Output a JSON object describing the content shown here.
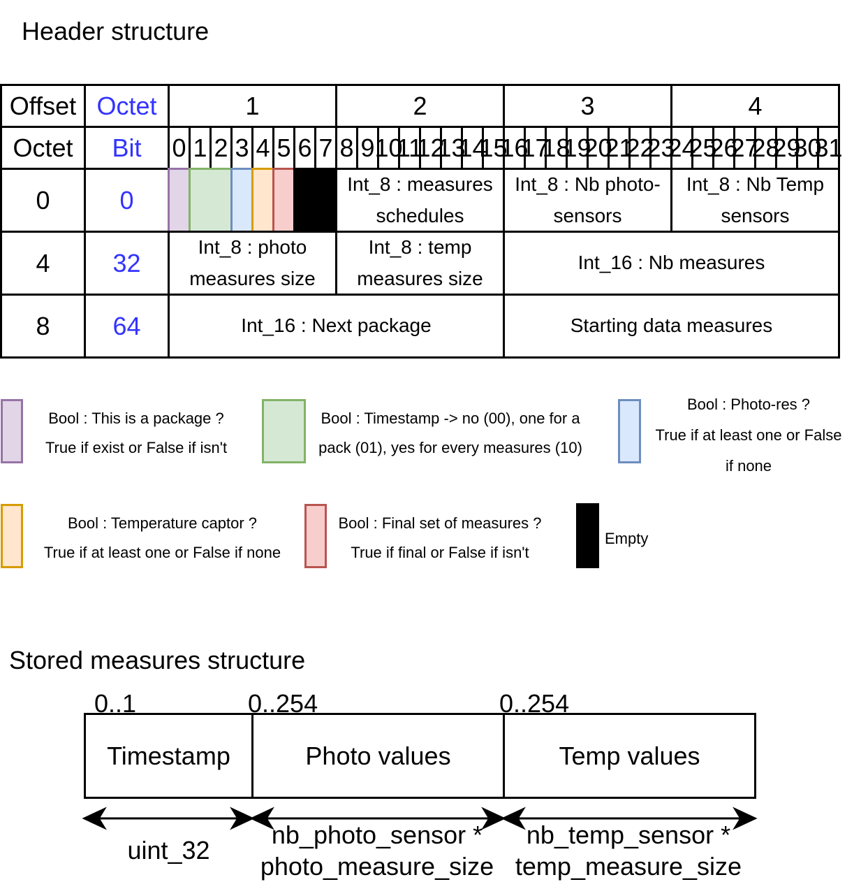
{
  "header_title": "Header structure",
  "table": {
    "corner_offset": "Offset",
    "corner_octet": "Octet",
    "row2_offset": "Octet",
    "row2_bit": "Bit",
    "octets": [
      "1",
      "2",
      "3",
      "4"
    ],
    "bits": [
      "0",
      "1",
      "2",
      "3",
      "4",
      "5",
      "6",
      "7",
      "8",
      "9",
      "10",
      "11",
      "12",
      "13",
      "14",
      "15",
      "16",
      "17",
      "18",
      "19",
      "20",
      "21",
      "22",
      "23",
      "24",
      "25",
      "26",
      "27",
      "28",
      "29",
      "30",
      "31"
    ],
    "rows": [
      {
        "octet": "0",
        "bit": "0",
        "fields": [
          "Int_8 : measures schedules",
          "Int_8 : Nb photo-sensors",
          "Int_8 : Nb Temp sensors"
        ]
      },
      {
        "octet": "4",
        "bit": "32",
        "fields": [
          "Int_8 : photo measures size",
          "Int_8 : temp measures size",
          "Int_16 : Nb measures"
        ]
      },
      {
        "octet": "8",
        "bit": "64",
        "fields": [
          "Int_16 : Next package",
          "Starting data measures"
        ]
      }
    ]
  },
  "legend": [
    {
      "label": "Bool : This is a package ?",
      "desc": "True if exist or False if isn't",
      "fill": "#e1d5e7",
      "stroke": "#9673a6"
    },
    {
      "label": "Bool : Timestamp -> no (00), one for a",
      "desc": "pack (01), yes for every measures (10)",
      "fill": "#d5e8d4",
      "stroke": "#82b366"
    },
    {
      "label": "Bool : Photo-res ?",
      "desc": "True if at least one or False",
      "desc2": "if none",
      "fill": "#dae8fc",
      "stroke": "#6c8ebf"
    },
    {
      "label": "Bool : Temperature captor ?",
      "desc": "True if at least one or False if none",
      "fill": "#ffe6cc",
      "stroke": "#d79b00"
    },
    {
      "label": "Bool : Final set of measures ?",
      "desc": "True if final or False if isn't",
      "fill": "#f8cecc",
      "stroke": "#b85450"
    },
    {
      "label": "Empty",
      "fill": "#000000",
      "stroke": "#000000"
    }
  ],
  "stored_title": "Stored measures structure",
  "stored": [
    {
      "range": "0..1",
      "name": "Timestamp",
      "size": "uint_32"
    },
    {
      "range": "0..254",
      "name": "Photo values",
      "size": "nb_photo_sensor * photo_measure_size",
      "size1": "nb_photo_sensor *",
      "size2": "photo_measure_size"
    },
    {
      "range": "0..254",
      "name": "Temp values",
      "size": "nb_temp_sensor * temp_measure_size",
      "size1": "nb_temp_sensor *",
      "size2": "temp_measure_size"
    }
  ]
}
